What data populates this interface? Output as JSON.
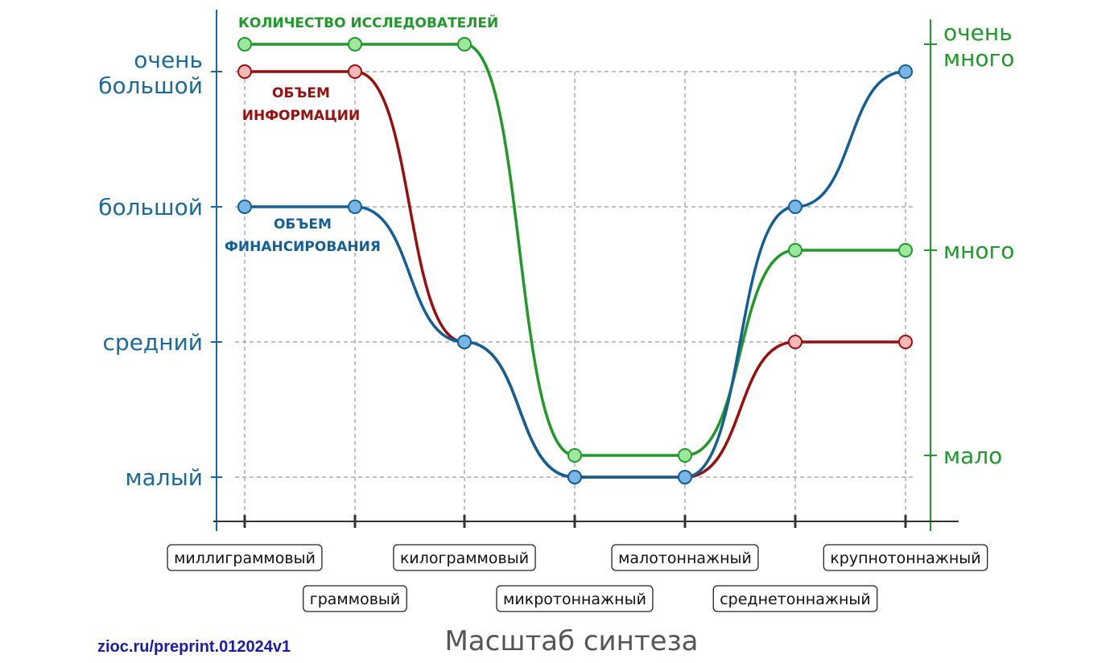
{
  "chart_data": {
    "type": "line",
    "title": "",
    "xlabel": "Масштаб синтеза",
    "categories": [
      "миллиграммовый",
      "граммовый",
      "килограммовый",
      "микротоннажный",
      "малотоннажный",
      "среднетоннажный",
      "крупнотоннажный"
    ],
    "left_axis": {
      "ticks": [
        "малый",
        "средний",
        "большой",
        "очень большой"
      ],
      "tick_values": [
        0,
        1,
        2,
        3
      ],
      "range": [
        0,
        3
      ],
      "color": "#1b6a9e"
    },
    "right_axis": {
      "ticks": [
        "мало",
        "много",
        "очень много"
      ],
      "tick_values": [
        0,
        1,
        2
      ],
      "range": [
        0,
        2
      ],
      "color": "#1f9a2a"
    },
    "series": [
      {
        "name": "КОЛИЧЕСТВО ИССЛЕДОВАТЕЛЕЙ",
        "axis": "right",
        "color": "#1f9a2a",
        "marker_fill": "#9ee89e",
        "values": [
          2,
          2,
          2,
          0,
          0,
          1,
          1
        ]
      },
      {
        "name": "ОБЪЕМ ИНФОРМАЦИИ",
        "axis": "left",
        "color": "#9a0e0e",
        "marker_fill": "#f4b8b8",
        "values": [
          3,
          3,
          1,
          0,
          0,
          1,
          1
        ]
      },
      {
        "name": "ОБЪЕМ ФИНАНСИРОВАНИЯ",
        "axis": "left",
        "color": "#135f96",
        "marker_fill": "#79b6e6",
        "values": [
          2,
          2,
          1,
          0,
          0,
          2,
          3
        ]
      }
    ],
    "grid": true
  },
  "watermark": "zioc.ru/preprint.012024v1"
}
